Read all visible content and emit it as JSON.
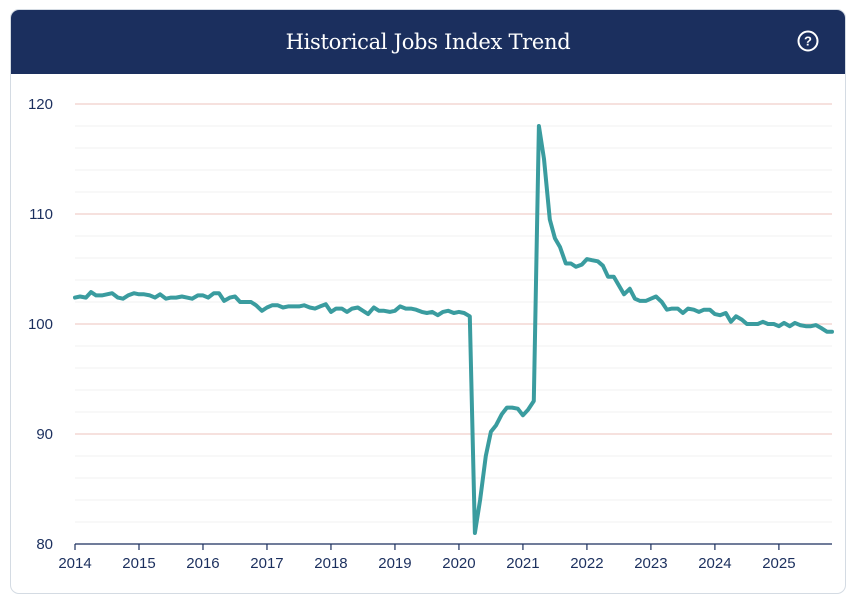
{
  "header": {
    "title": "Historical Jobs Index Trend",
    "help_icon": "question-circle-icon"
  },
  "colors": {
    "header_bg": "#1b2f5e",
    "line": "#3a9c9f",
    "major_grid": "#f0cfc9",
    "minor_grid": "#f2f2f2",
    "axis_text": "#1b2f5e"
  },
  "chart_data": {
    "type": "line",
    "title": "Historical Jobs Index Trend",
    "xlabel": "",
    "ylabel": "",
    "xlim": [
      2014,
      2025.83
    ],
    "ylim": [
      80,
      120
    ],
    "x_ticks": [
      "2014",
      "2015",
      "2016",
      "2017",
      "2018",
      "2019",
      "2020",
      "2021",
      "2022",
      "2023",
      "2024",
      "2025"
    ],
    "y_ticks": [
      "80",
      "90",
      "100",
      "110",
      "120"
    ],
    "grid": true,
    "legend": "none",
    "series": [
      {
        "x": [
          2014.0,
          2014.08,
          2014.17,
          2014.25,
          2014.33,
          2014.42,
          2014.5,
          2014.58,
          2014.67,
          2014.75,
          2014.83,
          2014.92,
          2015.0,
          2015.08,
          2015.17,
          2015.25,
          2015.33,
          2015.42,
          2015.5,
          2015.58,
          2015.67,
          2015.75,
          2015.83,
          2015.92,
          2016.0,
          2016.08,
          2016.17,
          2016.25,
          2016.33,
          2016.42,
          2016.5,
          2016.58,
          2016.67,
          2016.75,
          2016.83,
          2016.92,
          2017.0,
          2017.08,
          2017.17,
          2017.25,
          2017.33,
          2017.42,
          2017.5,
          2017.58,
          2017.67,
          2017.75,
          2017.83,
          2017.92,
          2018.0,
          2018.08,
          2018.17,
          2018.25,
          2018.33,
          2018.42,
          2018.5,
          2018.58,
          2018.67,
          2018.75,
          2018.83,
          2018.92,
          2019.0,
          2019.08,
          2019.17,
          2019.25,
          2019.33,
          2019.42,
          2019.5,
          2019.58,
          2019.67,
          2019.75,
          2019.83,
          2019.92,
          2020.0,
          2020.08,
          2020.17,
          2020.25,
          2020.33,
          2020.42,
          2020.5,
          2020.58,
          2020.67,
          2020.75,
          2020.83,
          2020.92,
          2021.0,
          2021.08,
          2021.17,
          2021.25,
          2021.33,
          2021.42,
          2021.5,
          2021.58,
          2021.67,
          2021.75,
          2021.83,
          2021.92,
          2022.0,
          2022.08,
          2022.17,
          2022.25,
          2022.33,
          2022.42,
          2022.5,
          2022.58,
          2022.67,
          2022.75,
          2022.83,
          2022.92,
          2023.0,
          2023.08,
          2023.17,
          2023.25,
          2023.33,
          2023.42,
          2023.5,
          2023.58,
          2023.67,
          2023.75,
          2023.83,
          2023.92,
          2024.0,
          2024.08,
          2024.17,
          2024.25,
          2024.33,
          2024.42,
          2024.5,
          2024.58,
          2024.67,
          2024.75,
          2024.83,
          2024.92,
          2025.0,
          2025.08,
          2025.17,
          2025.25,
          2025.33,
          2025.42,
          2025.5,
          2025.58,
          2025.67,
          2025.75,
          2025.83
        ],
        "y": [
          102.4,
          102.5,
          102.4,
          102.9,
          102.6,
          102.6,
          102.7,
          102.8,
          102.4,
          102.3,
          102.6,
          102.8,
          102.7,
          102.7,
          102.6,
          102.4,
          102.7,
          102.3,
          102.4,
          102.4,
          102.5,
          102.4,
          102.3,
          102.6,
          102.6,
          102.4,
          102.8,
          102.8,
          102.1,
          102.4,
          102.5,
          102.0,
          102.0,
          102.0,
          101.7,
          101.2,
          101.5,
          101.7,
          101.7,
          101.5,
          101.6,
          101.6,
          101.6,
          101.7,
          101.5,
          101.4,
          101.6,
          101.8,
          101.1,
          101.4,
          101.4,
          101.1,
          101.4,
          101.5,
          101.2,
          100.9,
          101.5,
          101.2,
          101.2,
          101.1,
          101.2,
          101.6,
          101.4,
          101.4,
          101.3,
          101.1,
          101.0,
          101.1,
          100.8,
          101.1,
          101.2,
          101.0,
          101.1,
          101.0,
          100.7,
          81.0,
          84.0,
          88.0,
          90.2,
          90.8,
          91.8,
          92.4,
          92.4,
          92.3,
          91.7,
          92.2,
          93.0,
          118.0,
          115.0,
          109.5,
          107.8,
          107.0,
          105.5,
          105.5,
          105.2,
          105.4,
          105.9,
          105.8,
          105.7,
          105.3,
          104.3,
          104.3,
          103.5,
          102.7,
          103.2,
          102.3,
          102.1,
          102.1,
          102.3,
          102.5,
          102.0,
          101.3,
          101.4,
          101.4,
          101.0,
          101.4,
          101.3,
          101.1,
          101.3,
          101.3,
          100.9,
          100.8,
          101.0,
          100.2,
          100.7,
          100.4,
          100.0,
          100.0,
          100.0,
          100.2,
          100.0,
          100.0,
          99.8,
          100.1,
          99.8,
          100.1,
          99.9,
          99.8,
          99.8,
          99.9,
          99.6,
          99.3,
          99.3
        ]
      }
    ]
  }
}
